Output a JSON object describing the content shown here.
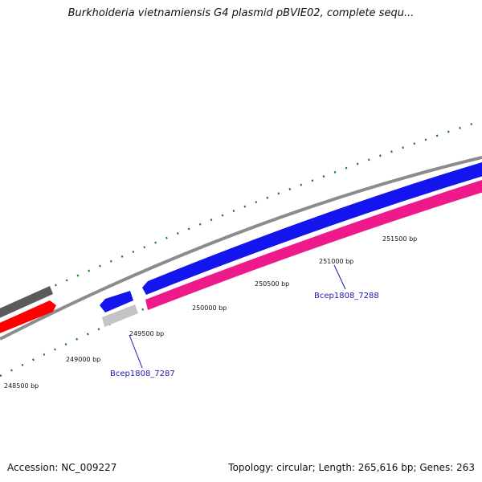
{
  "title": "Burkholderia vietnamiensis G4 plasmid pBVIE02, complete sequ...",
  "footer": {
    "accession": "Accession: NC_009227",
    "summary": "Topology: circular; Length: 265,616 bp; Genes: 263"
  },
  "ruler": {
    "unit": "bp",
    "labels": [
      "248500 bp",
      "249000 bp",
      "249500 bp",
      "250000 bp",
      "250500 bp",
      "251000 bp",
      "251500 bp"
    ]
  },
  "genes": [
    {
      "name": "Bcep1808_7287"
    },
    {
      "name": "Bcep1808_7288"
    }
  ],
  "colors": {
    "tick": "#1f7a1f",
    "backbone": "#8c8c8c",
    "dark_gray_feature": "#5a5a5a",
    "red_feature": "#ff0000",
    "blue_feature": "#1414ee",
    "light_gray_feature": "#c4c4c4",
    "magenta_feature": "#ee1a8c",
    "label_link": "#1a1ab4"
  }
}
